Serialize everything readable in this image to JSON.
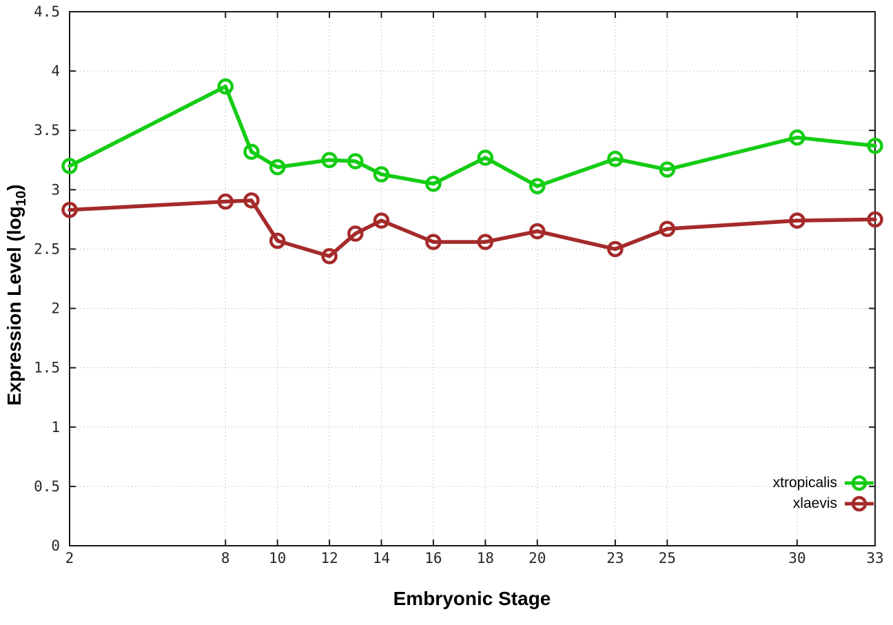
{
  "chart_data": {
    "type": "line",
    "title": "",
    "xlabel": "Embryonic Stage",
    "ylabel": {
      "pre": "Expression Level (log",
      "sub": "10",
      "post": ")"
    },
    "x": [
      2,
      8,
      9,
      10,
      12,
      13,
      14,
      16,
      18,
      20,
      23,
      25,
      30,
      33
    ],
    "series": [
      {
        "name": "xtropicalis",
        "color": "#14cc14",
        "values": [
          3.2,
          3.87,
          3.32,
          3.19,
          3.25,
          3.24,
          3.13,
          3.05,
          3.27,
          3.03,
          3.26,
          3.17,
          3.44,
          3.37
        ]
      },
      {
        "name": "xlaevis",
        "color": "#a52a2a",
        "values": [
          2.83,
          2.9,
          2.91,
          2.57,
          2.44,
          2.63,
          2.74,
          2.56,
          2.56,
          2.65,
          2.5,
          2.67,
          2.74,
          2.75
        ]
      }
    ],
    "x_ticks": [
      2,
      8,
      10,
      12,
      14,
      16,
      18,
      20,
      23,
      25,
      30,
      33
    ],
    "y_ticks": [
      0,
      0.5,
      1,
      1.5,
      2,
      2.5,
      3,
      3.5,
      4,
      4.5
    ],
    "xlim": [
      2,
      33
    ],
    "ylim": [
      0,
      4.5
    ],
    "grid": true,
    "legend_position": "bottom-right",
    "colors": {
      "grid": "#b9b9b9",
      "border": "#1a1a1a",
      "tick_text": "#262626"
    }
  }
}
